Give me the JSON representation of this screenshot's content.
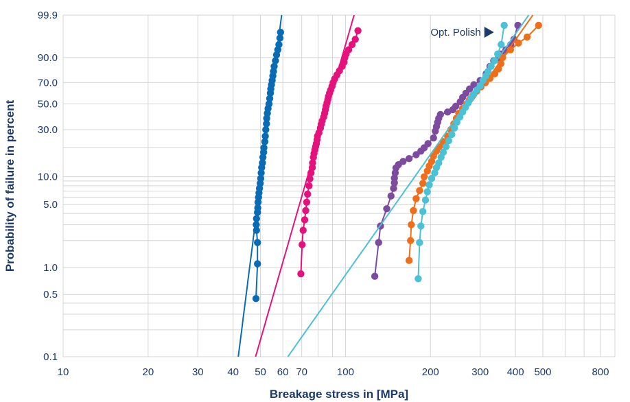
{
  "chart_data": {
    "type": "scatter",
    "xlabel": "Breakage stress in [MPa]",
    "ylabel": "Probability of failure in percent",
    "x_scale": "log",
    "y_scale": "weibull-probability",
    "xlim": [
      10,
      900
    ],
    "ylim": [
      0.1,
      99.9
    ],
    "x_ticks": [
      10,
      20,
      30,
      40,
      50,
      60,
      70,
      100,
      200,
      300,
      400,
      500,
      800
    ],
    "x_tick_labels": [
      "10",
      "20",
      "30",
      "40",
      "50",
      "60",
      "70",
      "100",
      "200",
      "300",
      "400",
      "500",
      "800"
    ],
    "y_ticks": [
      0.1,
      0.5,
      1.0,
      5.0,
      10.0,
      30.0,
      50.0,
      70.0,
      90.0,
      99.9
    ],
    "y_tick_labels": [
      "0.1",
      "0.5",
      "1.0",
      "5.0",
      "10.0",
      "30.0",
      "50.0",
      "70.0",
      "90.0",
      "99.9"
    ],
    "y_minor_grid": [
      0.2,
      0.3,
      0.4,
      2,
      3,
      4,
      6,
      7,
      8,
      9,
      20
    ],
    "grid": true,
    "annotation": {
      "text": "Opt. Polish",
      "target_series": 4
    },
    "series": [
      {
        "color": "#0a6bb5",
        "fit": {
          "scale": 55,
          "shape": 25,
          "y_from": 0.1,
          "y_to": 99.9
        },
        "points": [
          [
            48.2,
            0.45
          ],
          [
            48.8,
            1.1
          ],
          [
            48.8,
            1.9
          ],
          [
            48.4,
            2.6
          ],
          [
            48.3,
            3.0
          ],
          [
            48.4,
            3.5
          ],
          [
            48.8,
            4.1
          ],
          [
            48.9,
            4.6
          ],
          [
            49.0,
            5.3
          ],
          [
            49.2,
            6.0
          ],
          [
            49.4,
            6.7
          ],
          [
            49.6,
            7.5
          ],
          [
            49.9,
            8.5
          ],
          [
            50.1,
            9.6
          ],
          [
            50.3,
            11
          ],
          [
            50.5,
            12.5
          ],
          [
            50.8,
            14
          ],
          [
            51.0,
            16
          ],
          [
            51.3,
            18
          ],
          [
            51.4,
            20
          ],
          [
            51.8,
            23
          ],
          [
            52.0,
            26
          ],
          [
            52.2,
            30
          ],
          [
            52.5,
            34
          ],
          [
            52.6,
            38
          ],
          [
            52.9,
            42
          ],
          [
            53.2,
            46
          ],
          [
            53.6,
            50
          ],
          [
            53.9,
            55
          ],
          [
            54.2,
            60
          ],
          [
            54.4,
            64
          ],
          [
            54.7,
            68
          ],
          [
            55.0,
            72
          ],
          [
            55.3,
            76
          ],
          [
            55.6,
            80
          ],
          [
            55.9,
            84
          ],
          [
            56.5,
            88
          ],
          [
            57.0,
            91.5
          ],
          [
            57.6,
            94
          ],
          [
            58.1,
            96
          ],
          [
            58.6,
            97.8
          ],
          [
            58.9,
            98.8
          ]
        ]
      },
      {
        "color": "#e4127d",
        "fit": {
          "scale": 90,
          "shape": 11,
          "y_from": 0.1,
          "y_to": 99.9
        },
        "points": [
          [
            69.5,
            0.85
          ],
          [
            70.2,
            1.8
          ],
          [
            70.8,
            2.6
          ],
          [
            71.7,
            3.4
          ],
          [
            72.3,
            4.3
          ],
          [
            72.9,
            5.3
          ],
          [
            73.4,
            6.5
          ],
          [
            74.3,
            8.0
          ],
          [
            74.8,
            9.5
          ],
          [
            75.5,
            11
          ],
          [
            76.3,
            12.5
          ],
          [
            76.5,
            14
          ],
          [
            77.0,
            16
          ],
          [
            77.4,
            17.5
          ],
          [
            77.9,
            19
          ],
          [
            78.4,
            20.5
          ],
          [
            78.9,
            22
          ],
          [
            79.3,
            24
          ],
          [
            79.6,
            26
          ],
          [
            80.5,
            28
          ],
          [
            81.5,
            31
          ],
          [
            82.0,
            33.5
          ],
          [
            82.7,
            36
          ],
          [
            83.7,
            39
          ],
          [
            84.4,
            42
          ],
          [
            84.9,
            45
          ],
          [
            85.4,
            48
          ],
          [
            86.0,
            51
          ],
          [
            86.6,
            54
          ],
          [
            87.1,
            57
          ],
          [
            87.8,
            60
          ],
          [
            88.6,
            63
          ],
          [
            89.6,
            66.5
          ],
          [
            90.4,
            70
          ],
          [
            91.6,
            73.5
          ],
          [
            93.3,
            77
          ],
          [
            95.2,
            80.5
          ],
          [
            97.3,
            84
          ],
          [
            98.9,
            87
          ],
          [
            99.5,
            90
          ],
          [
            100.5,
            92
          ],
          [
            102.6,
            94
          ],
          [
            105.5,
            96
          ],
          [
            108.3,
            97.5
          ],
          [
            110.7,
            99.0
          ]
        ]
      },
      {
        "color": "#7c4b9e",
        "fit": null,
        "points": [
          [
            127,
            0.8
          ],
          [
            131,
            1.9
          ],
          [
            133,
            2.9
          ],
          [
            140,
            4.5
          ],
          [
            145,
            6.2
          ],
          [
            148,
            7.5
          ],
          [
            149,
            8.6
          ],
          [
            149,
            9.7
          ],
          [
            150,
            11
          ],
          [
            151,
            12.4
          ],
          [
            154,
            13.4
          ],
          [
            160,
            14.5
          ],
          [
            168,
            15.5
          ],
          [
            178,
            17
          ],
          [
            185,
            18.5
          ],
          [
            190,
            20
          ],
          [
            196,
            22
          ],
          [
            205,
            25
          ],
          [
            208,
            29
          ],
          [
            210,
            32
          ],
          [
            212,
            35
          ],
          [
            214,
            38
          ],
          [
            217,
            41
          ],
          [
            230,
            43
          ],
          [
            240,
            45
          ],
          [
            246,
            48
          ],
          [
            255,
            52
          ],
          [
            260,
            56
          ],
          [
            267,
            60
          ],
          [
            275,
            64
          ],
          [
            285,
            68
          ],
          [
            300,
            72
          ],
          [
            315,
            78
          ],
          [
            325,
            84
          ],
          [
            335,
            88
          ],
          [
            348,
            90
          ],
          [
            356,
            92
          ],
          [
            370,
            94
          ],
          [
            385,
            96
          ],
          [
            395,
            97.5
          ],
          [
            408,
            99.5
          ]
        ]
      },
      {
        "color": "#ef6e1a",
        "fit": {
          "scale": 300,
          "shape": 4.5,
          "y_from": 20,
          "y_to": 99.9
        },
        "points": [
          [
            168,
            1.2
          ],
          [
            170,
            2.0
          ],
          [
            171,
            3.0
          ],
          [
            174,
            4.3
          ],
          [
            178,
            5.8
          ],
          [
            183,
            7.1
          ],
          [
            188,
            8.5
          ],
          [
            190,
            10
          ],
          [
            195,
            11.5
          ],
          [
            198,
            13
          ],
          [
            202,
            14.5
          ],
          [
            205,
            16.5
          ],
          [
            210,
            18.5
          ],
          [
            215,
            20.5
          ],
          [
            222,
            23
          ],
          [
            230,
            26
          ],
          [
            236,
            30
          ],
          [
            242,
            34
          ],
          [
            247,
            38
          ],
          [
            252,
            42
          ],
          [
            260,
            46
          ],
          [
            268,
            50
          ],
          [
            275,
            54
          ],
          [
            283,
            58
          ],
          [
            292,
            62
          ],
          [
            302,
            66
          ],
          [
            313,
            70
          ],
          [
            325,
            74
          ],
          [
            338,
            78
          ],
          [
            348,
            82
          ],
          [
            355,
            86
          ],
          [
            360,
            90
          ],
          [
            384,
            94
          ],
          [
            410,
            96.5
          ],
          [
            440,
            98
          ],
          [
            483,
            99.5
          ]
        ]
      },
      {
        "color": "#4bc1d5",
        "fit": {
          "scale": 290,
          "shape": 4.5,
          "y_from": 0.1,
          "y_to": 99.9
        },
        "points": [
          [
            181,
            0.75
          ],
          [
            183,
            1.9
          ],
          [
            185,
            2.9
          ],
          [
            188,
            4.2
          ],
          [
            192,
            5.6
          ],
          [
            195,
            6.9
          ],
          [
            198,
            8.2
          ],
          [
            202,
            9.6
          ],
          [
            207,
            11
          ],
          [
            210,
            12.5
          ],
          [
            214,
            14
          ],
          [
            218,
            16
          ],
          [
            222,
            18
          ],
          [
            227,
            20.5
          ],
          [
            232,
            23.5
          ],
          [
            238,
            27
          ],
          [
            243,
            31
          ],
          [
            248,
            35
          ],
          [
            254,
            39
          ],
          [
            260,
            43
          ],
          [
            266,
            47
          ],
          [
            272,
            51
          ],
          [
            278,
            55
          ],
          [
            285,
            59
          ],
          [
            292,
            63
          ],
          [
            300,
            67
          ],
          [
            307,
            72
          ],
          [
            314,
            76
          ],
          [
            320,
            80
          ],
          [
            328,
            84
          ],
          [
            337,
            88
          ],
          [
            346,
            92
          ],
          [
            356,
            96
          ],
          [
            365,
            99.5
          ]
        ]
      }
    ]
  }
}
